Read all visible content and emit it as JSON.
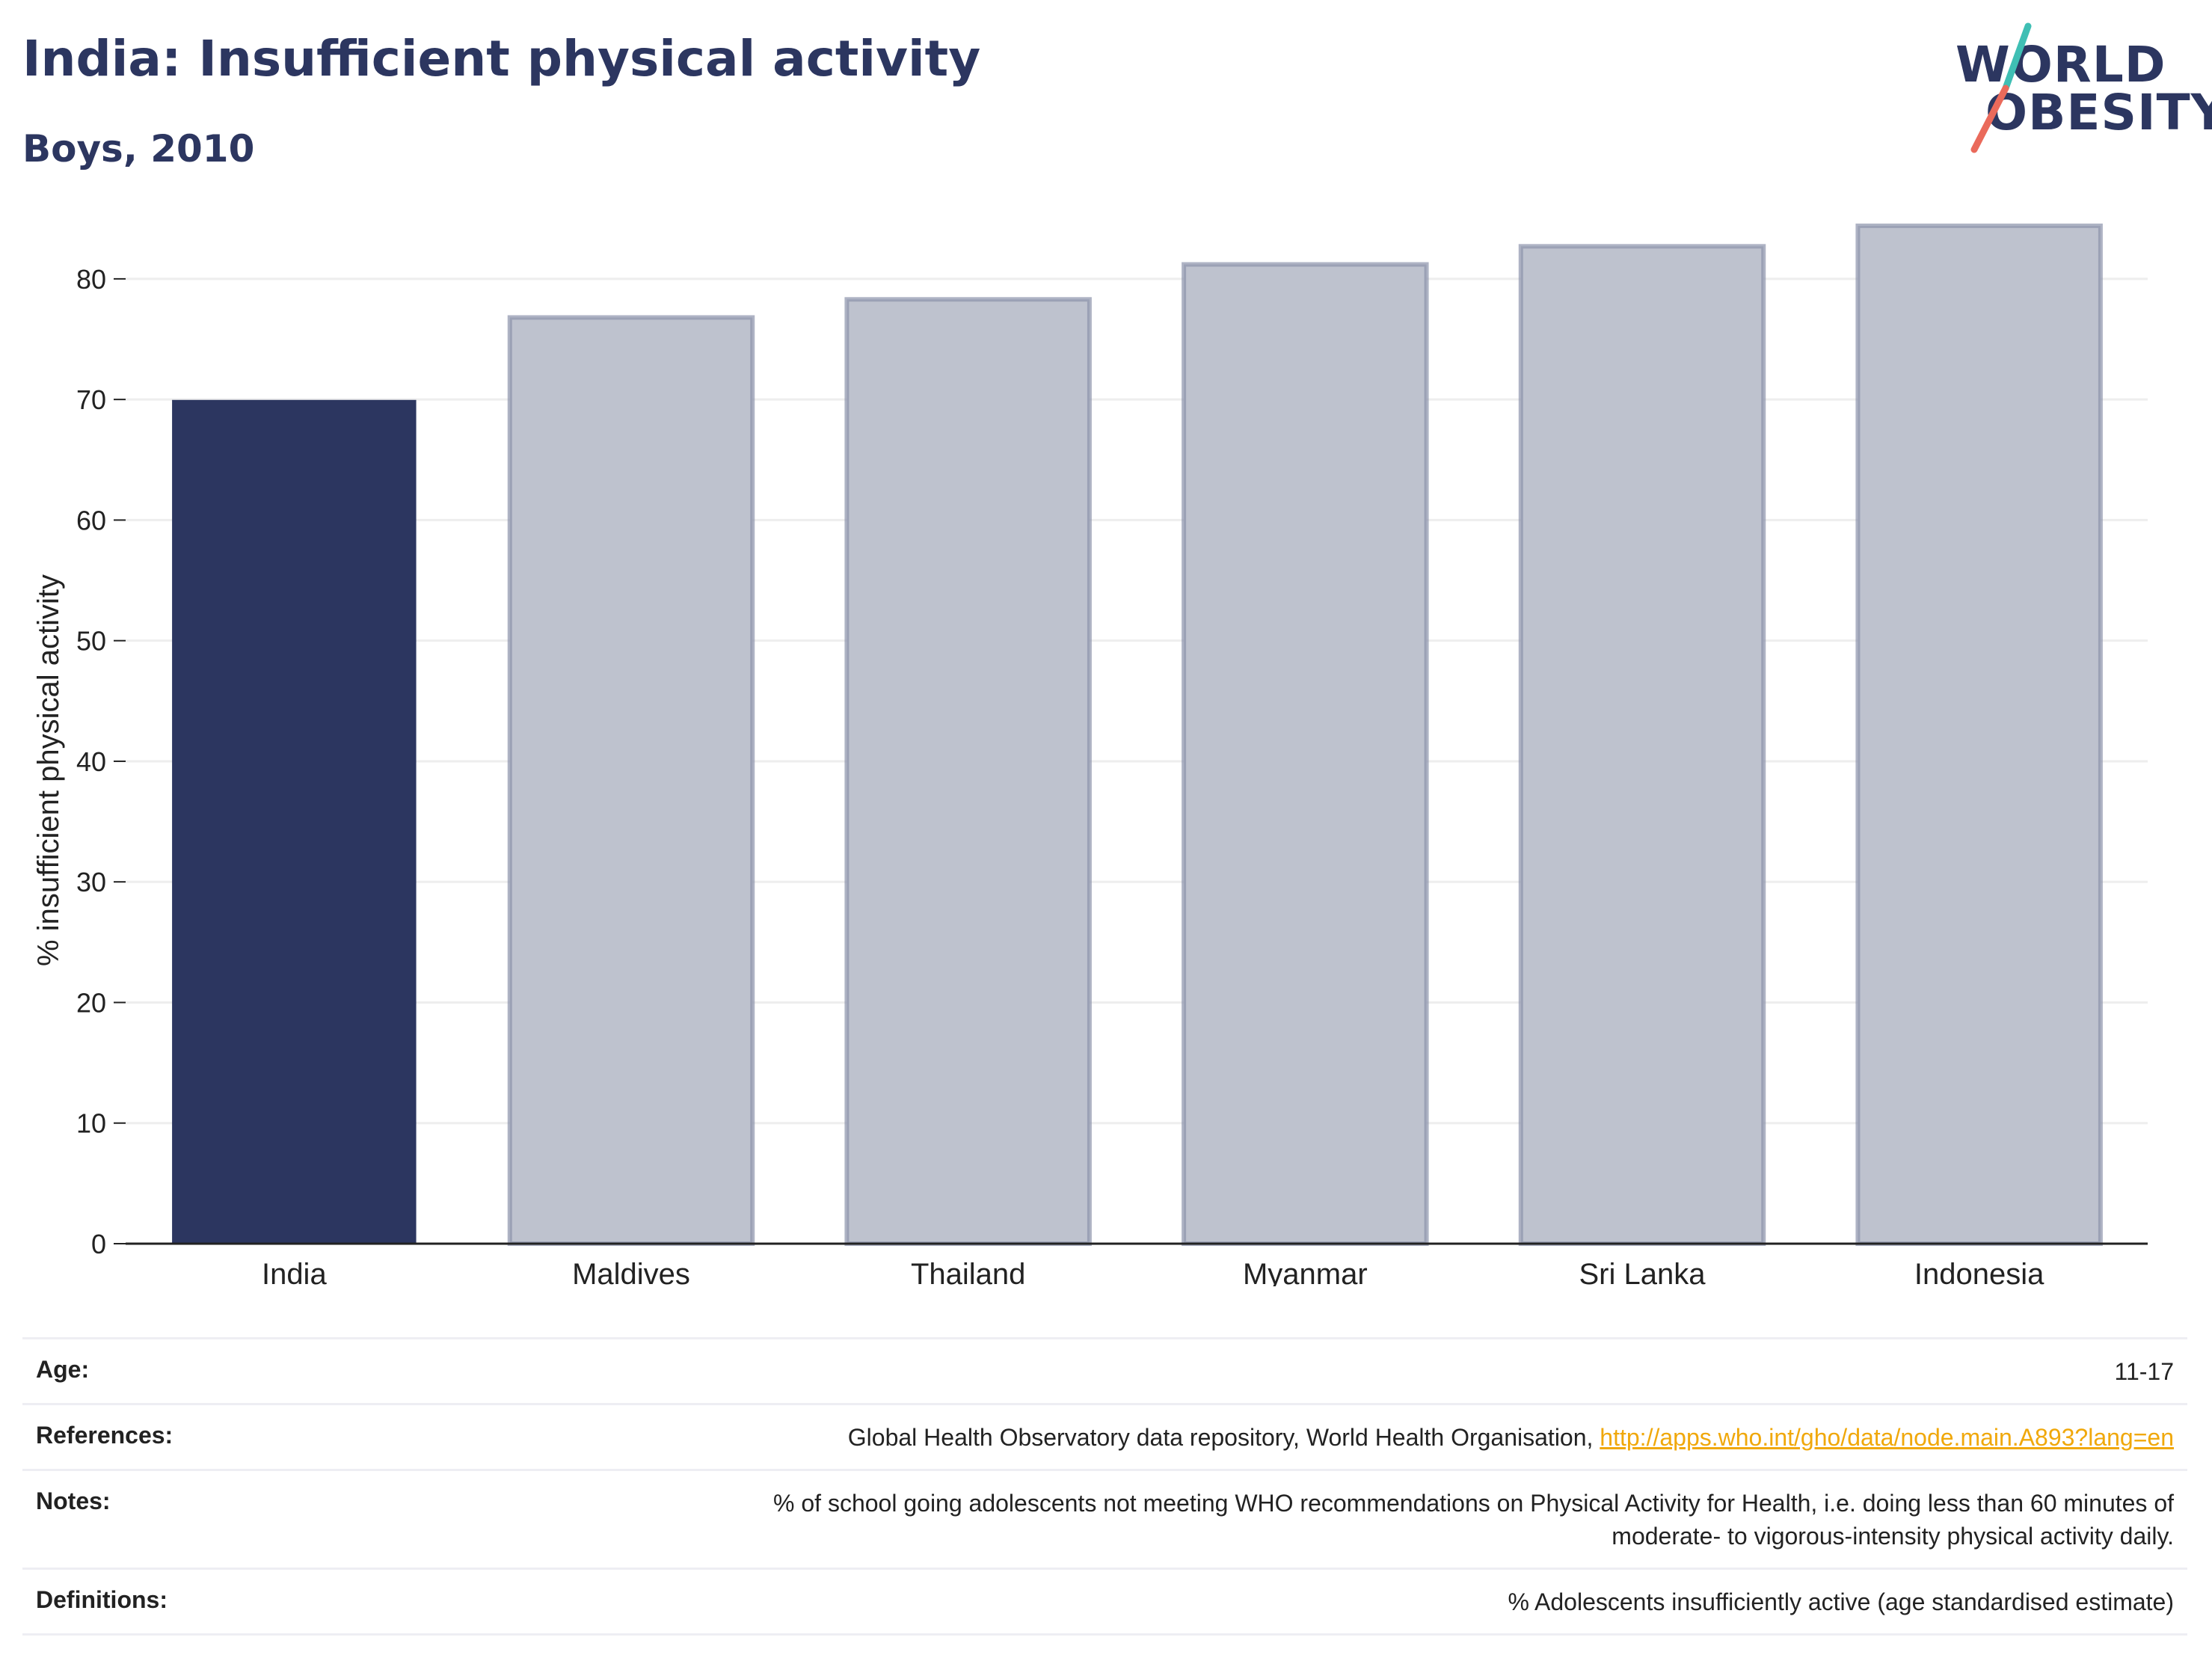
{
  "header": {
    "title": "India: Insufficient physical activity",
    "subtitle": "Boys, 2010"
  },
  "logo": {
    "line1": "WORLD",
    "line2": "OBESITY",
    "accent_teal": "#3fbfb4",
    "accent_coral": "#ea6a5b"
  },
  "colors": {
    "highlight_bar": "#2c3660",
    "other_bar": "#bec2ce",
    "other_bar_edge": "#8c93ab",
    "axis_text": "#222222",
    "grid": "#eeeeee"
  },
  "chart_data": {
    "type": "bar",
    "title": "India: Insufficient physical activity",
    "subtitle": "Boys, 2010",
    "xlabel": "",
    "ylabel": "% insufficient physical activity",
    "categories": [
      "India",
      "Maldives",
      "Thailand",
      "Myanmar",
      "Sri Lanka",
      "Indonesia"
    ],
    "values": [
      69.9,
      76.8,
      78.3,
      81.2,
      82.7,
      84.4
    ],
    "highlight": "India",
    "ylim": [
      0,
      87
    ],
    "yticks": [
      0,
      10,
      20,
      30,
      40,
      50,
      60,
      70,
      80
    ],
    "grid": true
  },
  "meta": {
    "age": {
      "label": "Age:",
      "value": "11-17"
    },
    "references": {
      "label": "References:",
      "text": "Global Health Observatory data repository, World Health Organisation,",
      "link": "http://apps.who.int/gho/data/node.main.A893?lang=en"
    },
    "notes": {
      "label": "Notes:",
      "line1": "% of school going adolescents not meeting WHO recommendations on Physical Activity for Health, i.e. doing less than 60 minutes of",
      "line2": "moderate- to vigorous-intensity physical activity daily."
    },
    "definitions": {
      "label": "Definitions:",
      "value": "% Adolescents insufficiently active (age standardised estimate)"
    }
  }
}
